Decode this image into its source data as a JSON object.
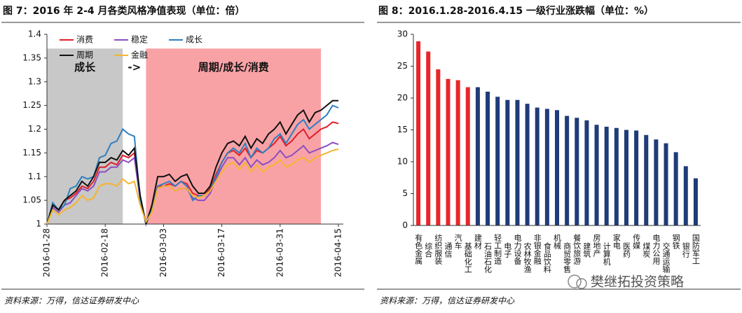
{
  "chart_data": [
    {
      "type": "line",
      "title": "图 7：2016 年 2-4 月各类风格净值表现（单位：倍）",
      "categories": [
        "2016-01-28",
        null,
        null,
        null,
        null,
        null,
        null,
        null,
        null,
        null,
        "2016-02-18",
        null,
        null,
        null,
        null,
        null,
        null,
        null,
        null,
        null,
        "2016-03-03",
        null,
        null,
        null,
        null,
        null,
        null,
        null,
        null,
        null,
        "2016-03-17",
        null,
        null,
        null,
        null,
        null,
        null,
        null,
        null,
        null,
        "2016-03-31",
        null,
        null,
        null,
        null,
        null,
        null,
        null,
        null,
        null,
        "2016-04-15"
      ],
      "ylim": [
        1,
        1.4
      ],
      "yticks": [
        1,
        1.05,
        1.1,
        1.15,
        1.2,
        1.25,
        1.3,
        1.35,
        1.4
      ],
      "regions": [
        {
          "label": "成长",
          "start": 0,
          "end": 13,
          "top": 1.37,
          "color": "#c8c8c8"
        },
        {
          "label": "周期/成长/消费",
          "start": 17,
          "end": 47,
          "top": 1.37,
          "color": "#f9a2a6"
        }
      ],
      "arrow": "->",
      "series": [
        {
          "name": "消费",
          "color": "#e0202a",
          "values": [
            1.0,
            1.04,
            1.03,
            1.05,
            1.055,
            1.065,
            1.08,
            1.075,
            1.09,
            1.12,
            1.12,
            1.13,
            1.125,
            1.145,
            1.14,
            1.15,
            1.055,
            1.0,
            1.035,
            1.08,
            1.08,
            1.085,
            1.08,
            1.09,
            1.085,
            1.065,
            1.06,
            1.06,
            1.075,
            1.105,
            1.13,
            1.15,
            1.155,
            1.145,
            1.16,
            1.14,
            1.155,
            1.15,
            1.16,
            1.17,
            1.185,
            1.165,
            1.175,
            1.19,
            1.2,
            1.18,
            1.19,
            1.2,
            1.205,
            1.215,
            1.212
          ]
        },
        {
          "name": "稳定",
          "color": "#8a4fc0",
          "values": [
            1.0,
            1.035,
            1.025,
            1.04,
            1.045,
            1.06,
            1.075,
            1.07,
            1.08,
            1.11,
            1.11,
            1.12,
            1.12,
            1.135,
            1.13,
            1.14,
            1.05,
            1.005,
            1.03,
            1.075,
            1.08,
            1.08,
            1.07,
            1.075,
            1.075,
            1.055,
            1.05,
            1.05,
            1.065,
            1.095,
            1.12,
            1.14,
            1.14,
            1.125,
            1.14,
            1.12,
            1.135,
            1.125,
            1.13,
            1.14,
            1.155,
            1.14,
            1.145,
            1.155,
            1.165,
            1.15,
            1.155,
            1.16,
            1.165,
            1.172,
            1.168
          ]
        },
        {
          "name": "成长",
          "color": "#2f7fc1",
          "values": [
            1.0,
            1.045,
            1.03,
            1.04,
            1.075,
            1.08,
            1.1,
            1.095,
            1.1,
            1.14,
            1.145,
            1.17,
            1.175,
            1.2,
            1.19,
            1.185,
            1.05,
            1.0,
            1.03,
            1.08,
            1.085,
            1.09,
            1.08,
            1.09,
            1.08,
            1.05,
            1.06,
            1.06,
            1.07,
            1.1,
            1.13,
            1.15,
            1.16,
            1.15,
            1.17,
            1.14,
            1.16,
            1.15,
            1.16,
            1.18,
            1.19,
            1.17,
            1.19,
            1.21,
            1.22,
            1.2,
            1.21,
            1.22,
            1.23,
            1.25,
            1.245
          ]
        },
        {
          "name": "周期",
          "color": "#111111",
          "values": [
            1.0,
            1.04,
            1.03,
            1.05,
            1.06,
            1.07,
            1.09,
            1.08,
            1.1,
            1.13,
            1.13,
            1.14,
            1.135,
            1.155,
            1.145,
            1.16,
            1.06,
            1.0,
            1.04,
            1.1,
            1.1,
            1.105,
            1.09,
            1.1,
            1.105,
            1.08,
            1.065,
            1.065,
            1.08,
            1.12,
            1.15,
            1.17,
            1.175,
            1.165,
            1.185,
            1.16,
            1.18,
            1.17,
            1.19,
            1.2,
            1.215,
            1.19,
            1.21,
            1.23,
            1.24,
            1.215,
            1.235,
            1.24,
            1.25,
            1.26,
            1.26
          ]
        },
        {
          "name": "金融",
          "color": "#f5b52e",
          "values": [
            1.0,
            1.03,
            1.02,
            1.03,
            1.035,
            1.045,
            1.06,
            1.05,
            1.055,
            1.08,
            1.085,
            1.085,
            1.08,
            1.095,
            1.085,
            1.09,
            1.04,
            1.005,
            1.025,
            1.075,
            1.08,
            1.08,
            1.07,
            1.075,
            1.075,
            1.06,
            1.055,
            1.06,
            1.07,
            1.09,
            1.11,
            1.125,
            1.13,
            1.115,
            1.13,
            1.11,
            1.125,
            1.11,
            1.12,
            1.125,
            1.135,
            1.12,
            1.125,
            1.135,
            1.14,
            1.13,
            1.14,
            1.145,
            1.15,
            1.155,
            1.158
          ]
        }
      ]
    },
    {
      "type": "bar",
      "title": "图 8：2016.1.28-2016.4.15 一级行业涨跌幅（单位：%）",
      "categories": [
        "有色金属",
        "综合",
        "纺织服装",
        "通信",
        "汽车",
        "基础化工",
        "建材",
        "石油石化",
        "轻工制造",
        "电子",
        "电力设备",
        "农林牧渔",
        "非银金融",
        "食品饮料",
        "机械",
        "商贸零售",
        "餐饮旅游",
        "建筑",
        "房地产",
        "计算机",
        "家电",
        "医药",
        "传媒",
        "煤炭",
        "电力公用",
        "交通运输",
        "钢铁",
        "银行",
        "国防军工"
      ],
      "values": [
        28.9,
        27.3,
        24.5,
        23.0,
        22.8,
        21.7,
        21.7,
        21.0,
        20.2,
        19.7,
        19.7,
        19.1,
        18.5,
        18.3,
        18.1,
        17.2,
        16.9,
        16.5,
        15.8,
        15.5,
        15.3,
        15.0,
        14.9,
        14.2,
        13.5,
        12.9,
        11.5,
        9.3,
        7.4
      ],
      "colors": [
        "#e8262a",
        "#e8262a",
        "#e8262a",
        "#e8262a",
        "#e8262a",
        "#e8262a",
        "#1f3b78",
        "#1f3b78",
        "#1f3b78",
        "#1f3b78",
        "#1f3b78",
        "#1f3b78",
        "#1f3b78",
        "#1f3b78",
        "#1f3b78",
        "#1f3b78",
        "#1f3b78",
        "#1f3b78",
        "#1f3b78",
        "#1f3b78",
        "#1f3b78",
        "#1f3b78",
        "#1f3b78",
        "#1f3b78",
        "#1f3b78",
        "#1f3b78",
        "#1f3b78",
        "#1f3b78",
        "#1f3b78"
      ],
      "ylim": [
        0,
        30
      ],
      "yticks": [
        0,
        5,
        10,
        15,
        20,
        25,
        30
      ]
    }
  ],
  "footers": [
    "资料来源：万得，信达证券研发中心",
    "资料来源：万得，信达证券研发中心"
  ],
  "watermark": "樊继拓投资策略"
}
